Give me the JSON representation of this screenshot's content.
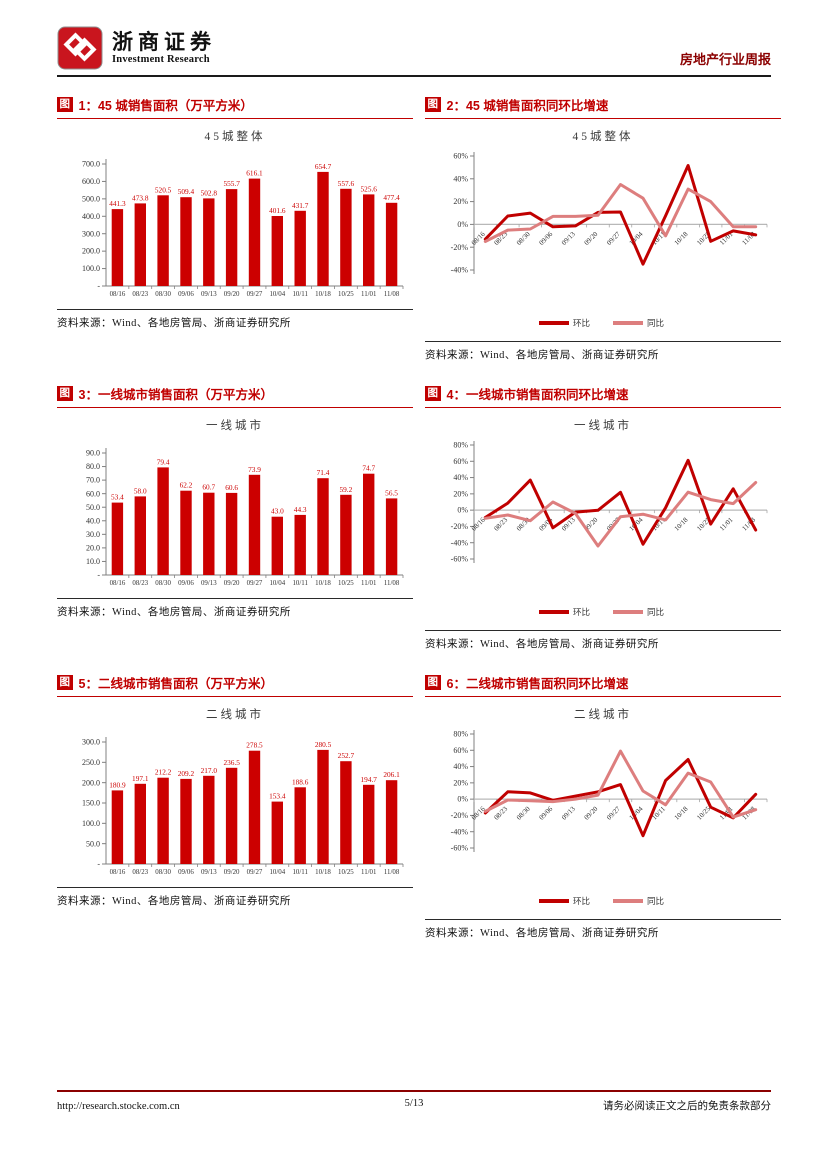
{
  "header": {
    "company_cn": "浙商证券",
    "company_en": "Investment Research",
    "report_title": "房地产行业周报"
  },
  "source_text": "资料来源：Wind、各地房管局、浙商证券研究所",
  "figures": [
    {
      "badge": "图",
      "title": "1：45 城销售面积（万平方米）",
      "source": "资料来源：Wind、各地房管局、浙商证券研究所",
      "chart_data": {
        "type": "bar",
        "title": "45城整体",
        "categories": [
          "08/16",
          "08/23",
          "08/30",
          "09/06",
          "09/13",
          "09/20",
          "09/27",
          "10/04",
          "10/11",
          "10/18",
          "10/25",
          "11/01",
          "11/08"
        ],
        "values": [
          441.3,
          473.8,
          520.5,
          509.4,
          502.8,
          555.7,
          616.1,
          401.6,
          431.7,
          654.7,
          557.6,
          525.6,
          477.4
        ],
        "ylim": [
          0,
          700
        ],
        "ytick_values": [
          0,
          100,
          200,
          300,
          400,
          500,
          600,
          700
        ],
        "ytick_labels": [
          "-",
          "100.0",
          "200.0",
          "300.0",
          "400.0",
          "500.0",
          "600.0",
          "700.0"
        ],
        "bar_color": "#cc0000",
        "grid": false
      }
    },
    {
      "badge": "图",
      "title": "2：45 城销售面积同环比增速",
      "source": "资料来源：Wind、各地房管局、浙商证券研究所",
      "chart_data": {
        "type": "line",
        "title": "45城整体",
        "categories": [
          "08/16",
          "08/23",
          "08/30",
          "09/06",
          "09/13",
          "09/20",
          "09/27",
          "10/04",
          "10/11",
          "10/18",
          "10/25",
          "11/01",
          "11/08"
        ],
        "series": [
          {
            "name": "环比",
            "color": "#c00000",
            "values": [
              -13.0,
              7.4,
              9.9,
              -2.1,
              -1.3,
              10.5,
              10.9,
              -34.8,
              7.5,
              51.7,
              -14.8,
              -5.7,
              -9.2
            ]
          },
          {
            "name": "同比",
            "color": "#dd7e7e",
            "values": [
              -15.0,
              -5.0,
              -4.0,
              7.0,
              7.0,
              8.0,
              35.0,
              23.0,
              -10.0,
              31.0,
              20.0,
              -2.0,
              -2.0
            ]
          }
        ],
        "ylim": [
          -40,
          60
        ],
        "ytick_values": [
          -40,
          -20,
          0,
          20,
          40,
          60
        ],
        "ytick_labels": [
          "-40%",
          "-20%",
          "0%",
          "20%",
          "40%",
          "60%"
        ],
        "legend_position": "bottom",
        "grid": false
      }
    },
    {
      "badge": "图",
      "title": "3：一线城市销售面积（万平方米）",
      "source": "资料来源：Wind、各地房管局、浙商证券研究所",
      "chart_data": {
        "type": "bar",
        "title": "一线城市",
        "categories": [
          "08/16",
          "08/23",
          "08/30",
          "09/06",
          "09/13",
          "09/20",
          "09/27",
          "10/04",
          "10/11",
          "10/18",
          "10/25",
          "11/01",
          "11/08"
        ],
        "values": [
          53.4,
          58.0,
          79.4,
          62.2,
          60.7,
          60.6,
          73.9,
          43.0,
          44.3,
          71.4,
          59.2,
          74.7,
          56.5
        ],
        "ylim": [
          0,
          90
        ],
        "ytick_values": [
          0,
          10,
          20,
          30,
          40,
          50,
          60,
          70,
          80,
          90
        ],
        "ytick_labels": [
          "-",
          "10.0",
          "20.0",
          "30.0",
          "40.0",
          "50.0",
          "60.0",
          "70.0",
          "80.0",
          "90.0"
        ],
        "bar_color": "#cc0000",
        "grid": false
      }
    },
    {
      "badge": "图",
      "title": "4：一线城市销售面积同环比增速",
      "source": "资料来源：Wind、各地房管局、浙商证券研究所",
      "chart_data": {
        "type": "line",
        "title": "一线城市",
        "categories": [
          "08/16",
          "08/23",
          "08/30",
          "09/06",
          "09/13",
          "09/20",
          "09/27",
          "10/04",
          "10/11",
          "10/18",
          "10/25",
          "11/01",
          "11/08"
        ],
        "series": [
          {
            "name": "环比",
            "color": "#c00000",
            "values": [
              -9.0,
              8.6,
              36.9,
              -21.7,
              -2.4,
              -0.2,
              21.9,
              -41.8,
              3.0,
              61.2,
              -17.1,
              26.2,
              -24.4
            ]
          },
          {
            "name": "同比",
            "color": "#dd7e7e",
            "values": [
              -10.0,
              -6.0,
              -13.0,
              10.0,
              -4.0,
              -44.0,
              -8.0,
              -5.0,
              -12.0,
              22.0,
              13.0,
              8.0,
              34.0
            ]
          }
        ],
        "ylim": [
          -60,
          80
        ],
        "ytick_values": [
          -60,
          -40,
          -20,
          0,
          20,
          40,
          60,
          80
        ],
        "ytick_labels": [
          "-60%",
          "-40%",
          "-20%",
          "0%",
          "20%",
          "40%",
          "60%",
          "80%"
        ],
        "legend_position": "bottom",
        "grid": false
      }
    },
    {
      "badge": "图",
      "title": "5：二线城市销售面积（万平方米）",
      "source": "资料来源：Wind、各地房管局、浙商证券研究所",
      "chart_data": {
        "type": "bar",
        "title": "二线城市",
        "categories": [
          "08/16",
          "08/23",
          "08/30",
          "09/06",
          "09/13",
          "09/20",
          "09/27",
          "10/04",
          "10/11",
          "10/18",
          "10/25",
          "11/01",
          "11/08"
        ],
        "values": [
          180.9,
          197.1,
          212.2,
          209.2,
          217.0,
          236.5,
          278.5,
          153.4,
          188.6,
          280.5,
          252.7,
          194.7,
          206.1
        ],
        "ylim": [
          0,
          300
        ],
        "ytick_values": [
          0,
          50,
          100,
          150,
          200,
          250,
          300
        ],
        "ytick_labels": [
          "-",
          "50.0",
          "100.0",
          "150.0",
          "200.0",
          "250.0",
          "300.0"
        ],
        "bar_color": "#cc0000",
        "grid": false
      }
    },
    {
      "badge": "图",
      "title": "6：二线城市销售面积同环比增速",
      "source": "资料来源：Wind、各地房管局、浙商证券研究所",
      "chart_data": {
        "type": "line",
        "title": "二线城市",
        "categories": [
          "08/16",
          "08/23",
          "08/30",
          "09/06",
          "09/13",
          "09/20",
          "09/27",
          "10/04",
          "10/11",
          "10/18",
          "10/25",
          "11/01",
          "11/08"
        ],
        "series": [
          {
            "name": "环比",
            "color": "#c00000",
            "values": [
              -17.0,
              9.0,
              7.7,
              -1.4,
              3.7,
              9.0,
              17.8,
              -44.9,
              22.9,
              48.7,
              -9.9,
              -23.0,
              5.9
            ]
          },
          {
            "name": "同比",
            "color": "#dd7e7e",
            "values": [
              -15.0,
              -1.0,
              -2.0,
              -3.0,
              0.0,
              5.0,
              59.0,
              10.0,
              -7.0,
              32.0,
              21.0,
              -22.0,
              -13.0
            ]
          }
        ],
        "ylim": [
          -60,
          80
        ],
        "ytick_values": [
          -60,
          -40,
          -20,
          0,
          20,
          40,
          60,
          80
        ],
        "ytick_labels": [
          "-60%",
          "-40%",
          "-20%",
          "0%",
          "20%",
          "40%",
          "60%",
          "80%"
        ],
        "legend_position": "bottom",
        "grid": false
      }
    }
  ],
  "footer": {
    "url": "http://research.stocke.com.cn",
    "page": "5/13",
    "disclaimer": "请务必阅读正文之后的免责条款部分"
  }
}
